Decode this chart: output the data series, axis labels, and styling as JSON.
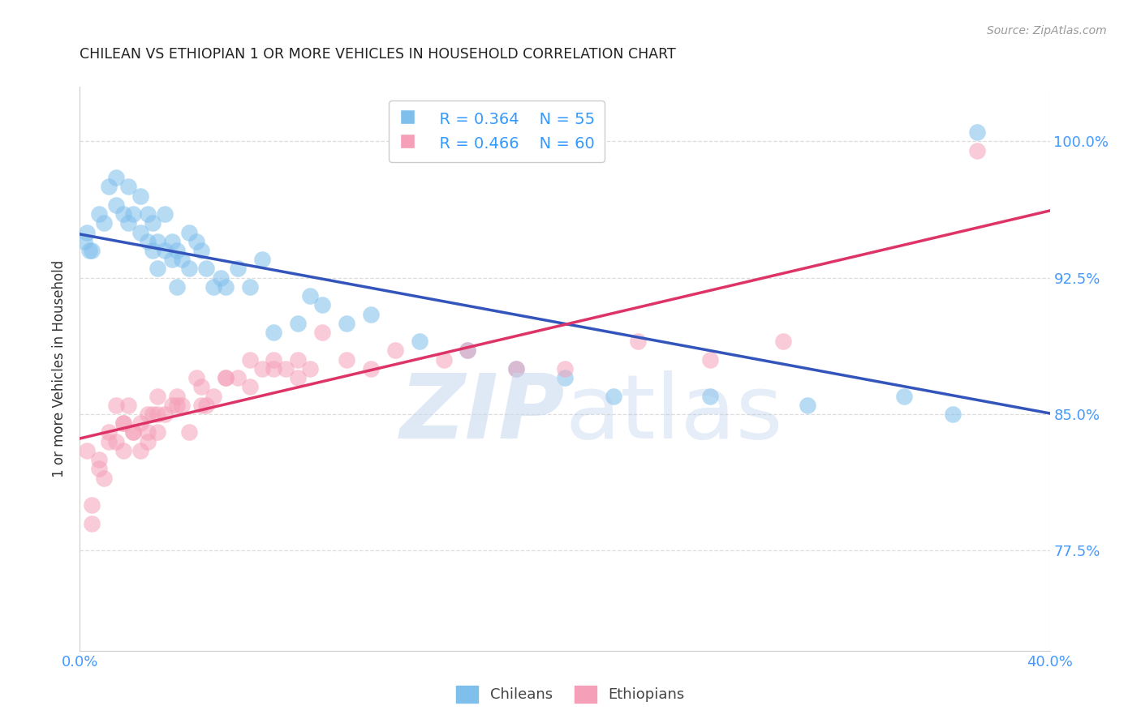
{
  "title": "CHILEAN VS ETHIOPIAN 1 OR MORE VEHICLES IN HOUSEHOLD CORRELATION CHART",
  "source": "Source: ZipAtlas.com",
  "ylabel": "1 or more Vehicles in Household",
  "ytick_labels": [
    "77.5%",
    "85.0%",
    "92.5%",
    "100.0%"
  ],
  "ytick_values": [
    0.775,
    0.85,
    0.925,
    1.0
  ],
  "xlim": [
    0.0,
    0.4
  ],
  "ylim": [
    0.72,
    1.03
  ],
  "legend_blue_r": "R = 0.364",
  "legend_blue_n": "N = 55",
  "legend_pink_r": "R = 0.466",
  "legend_pink_n": "N = 60",
  "legend_blue_label": "Chileans",
  "legend_pink_label": "Ethiopians",
  "blue_color": "#7fbfec",
  "pink_color": "#f5a0b8",
  "blue_line_color": "#3355bb",
  "pink_line_color": "#dd3366",
  "title_color": "#222222",
  "source_color": "#999999",
  "axis_label_color": "#333333",
  "ytick_color": "#4499ff",
  "xtick_color": "#4499ff",
  "legend_r_color": "#3399ff",
  "grid_color": "#dddddd",
  "blue_x": [
    0.005,
    0.008,
    0.01,
    0.012,
    0.015,
    0.015,
    0.018,
    0.02,
    0.02,
    0.022,
    0.025,
    0.025,
    0.028,
    0.028,
    0.03,
    0.03,
    0.032,
    0.032,
    0.035,
    0.035,
    0.038,
    0.038,
    0.04,
    0.04,
    0.042,
    0.045,
    0.045,
    0.048,
    0.05,
    0.052,
    0.055,
    0.058,
    0.06,
    0.065,
    0.07,
    0.075,
    0.08,
    0.09,
    0.095,
    0.1,
    0.11,
    0.12,
    0.14,
    0.16,
    0.18,
    0.2,
    0.22,
    0.26,
    0.3,
    0.34,
    0.36,
    0.002,
    0.003,
    0.004,
    0.37
  ],
  "blue_y": [
    0.94,
    0.96,
    0.955,
    0.975,
    0.965,
    0.98,
    0.96,
    0.955,
    0.975,
    0.96,
    0.95,
    0.97,
    0.96,
    0.945,
    0.955,
    0.94,
    0.945,
    0.93,
    0.94,
    0.96,
    0.945,
    0.935,
    0.94,
    0.92,
    0.935,
    0.95,
    0.93,
    0.945,
    0.94,
    0.93,
    0.92,
    0.925,
    0.92,
    0.93,
    0.92,
    0.935,
    0.895,
    0.9,
    0.915,
    0.91,
    0.9,
    0.905,
    0.89,
    0.885,
    0.875,
    0.87,
    0.86,
    0.86,
    0.855,
    0.86,
    0.85,
    0.945,
    0.95,
    0.94,
    1.005
  ],
  "pink_x": [
    0.003,
    0.005,
    0.008,
    0.01,
    0.012,
    0.015,
    0.015,
    0.018,
    0.018,
    0.02,
    0.022,
    0.025,
    0.025,
    0.028,
    0.028,
    0.03,
    0.032,
    0.032,
    0.035,
    0.038,
    0.04,
    0.042,
    0.045,
    0.048,
    0.05,
    0.052,
    0.055,
    0.06,
    0.065,
    0.07,
    0.075,
    0.08,
    0.085,
    0.09,
    0.095,
    0.1,
    0.11,
    0.12,
    0.13,
    0.15,
    0.16,
    0.18,
    0.2,
    0.23,
    0.26,
    0.29,
    0.005,
    0.008,
    0.012,
    0.018,
    0.022,
    0.028,
    0.032,
    0.04,
    0.05,
    0.06,
    0.07,
    0.08,
    0.09,
    0.37
  ],
  "pink_y": [
    0.83,
    0.8,
    0.825,
    0.815,
    0.84,
    0.835,
    0.855,
    0.845,
    0.83,
    0.855,
    0.84,
    0.845,
    0.83,
    0.85,
    0.835,
    0.85,
    0.84,
    0.86,
    0.85,
    0.855,
    0.855,
    0.855,
    0.84,
    0.87,
    0.855,
    0.855,
    0.86,
    0.87,
    0.87,
    0.88,
    0.875,
    0.88,
    0.875,
    0.88,
    0.875,
    0.895,
    0.88,
    0.875,
    0.885,
    0.88,
    0.885,
    0.875,
    0.875,
    0.89,
    0.88,
    0.89,
    0.79,
    0.82,
    0.835,
    0.845,
    0.84,
    0.84,
    0.85,
    0.86,
    0.865,
    0.87,
    0.865,
    0.875,
    0.87,
    0.995
  ]
}
